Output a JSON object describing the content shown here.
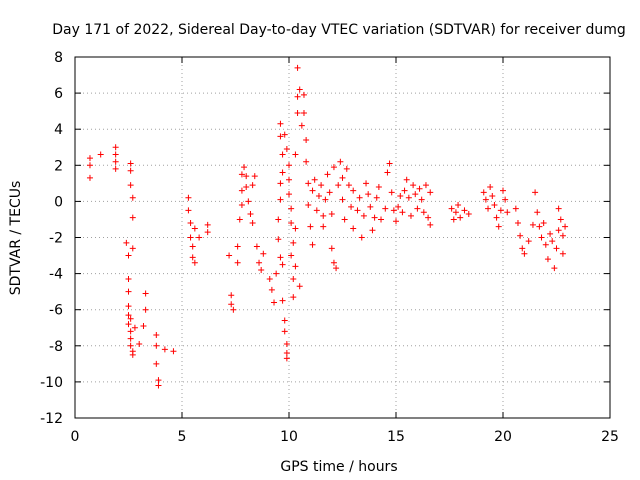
{
  "chart_data": {
    "type": "scatter",
    "title": "Day 171 of 2022, Sidereal Day-to-day VTEC variation (SDTVAR) for receiver dumg",
    "xlabel": "GPS time / hours",
    "ylabel": "SDTVAR / TECUs",
    "xlim": [
      0,
      25
    ],
    "ylim": [
      -12,
      8
    ],
    "xticks": [
      0,
      5,
      10,
      15,
      20,
      25
    ],
    "yticks": [
      -12,
      -10,
      -8,
      -6,
      -4,
      -2,
      0,
      2,
      4,
      6,
      8
    ],
    "grid": true,
    "marker": "+",
    "color": "#ff0000",
    "series": [
      {
        "name": "SDTVAR",
        "points": [
          [
            0.7,
            2.4
          ],
          [
            0.7,
            2.0
          ],
          [
            0.7,
            1.3
          ],
          [
            1.2,
            2.6
          ],
          [
            1.9,
            3.0
          ],
          [
            1.9,
            2.6
          ],
          [
            1.9,
            2.2
          ],
          [
            1.9,
            1.8
          ],
          [
            2.4,
            -2.3
          ],
          [
            2.5,
            -3.0
          ],
          [
            2.5,
            -4.3
          ],
          [
            2.5,
            -5.0
          ],
          [
            2.5,
            -5.8
          ],
          [
            2.5,
            -6.3
          ],
          [
            2.5,
            -6.8
          ],
          [
            2.6,
            -7.2
          ],
          [
            2.6,
            -7.6
          ],
          [
            2.6,
            -8.0
          ],
          [
            2.7,
            -8.3
          ],
          [
            2.7,
            -8.5
          ],
          [
            2.6,
            2.1
          ],
          [
            2.6,
            1.7
          ],
          [
            2.6,
            0.9
          ],
          [
            2.7,
            0.2
          ],
          [
            2.7,
            -0.9
          ],
          [
            2.7,
            -2.6
          ],
          [
            2.6,
            -6.5
          ],
          [
            2.8,
            -7.0
          ],
          [
            3.0,
            -7.9
          ],
          [
            3.2,
            -6.9
          ],
          [
            3.3,
            -6.0
          ],
          [
            3.3,
            -5.1
          ],
          [
            3.8,
            -7.4
          ],
          [
            3.8,
            -8.0
          ],
          [
            3.8,
            -9.0
          ],
          [
            3.9,
            -9.9
          ],
          [
            3.9,
            -10.2
          ],
          [
            4.2,
            -8.2
          ],
          [
            4.6,
            -8.3
          ],
          [
            5.3,
            0.2
          ],
          [
            5.3,
            -0.5
          ],
          [
            5.4,
            -1.2
          ],
          [
            5.4,
            -2.0
          ],
          [
            5.5,
            -2.5
          ],
          [
            5.5,
            -3.1
          ],
          [
            5.6,
            -3.4
          ],
          [
            5.6,
            -1.5
          ],
          [
            5.8,
            -2.0
          ],
          [
            6.2,
            -1.7
          ],
          [
            6.2,
            -1.3
          ],
          [
            7.2,
            -3.0
          ],
          [
            7.3,
            -5.2
          ],
          [
            7.3,
            -5.7
          ],
          [
            7.4,
            -6.0
          ],
          [
            7.6,
            -3.4
          ],
          [
            7.6,
            -2.5
          ],
          [
            7.7,
            -1.0
          ],
          [
            7.8,
            -0.2
          ],
          [
            7.8,
            0.6
          ],
          [
            7.8,
            1.5
          ],
          [
            7.9,
            1.9
          ],
          [
            8.0,
            1.4
          ],
          [
            8.0,
            0.8
          ],
          [
            8.1,
            0.0
          ],
          [
            8.2,
            -0.7
          ],
          [
            8.3,
            -1.2
          ],
          [
            8.3,
            0.9
          ],
          [
            8.4,
            1.4
          ],
          [
            8.5,
            -2.5
          ],
          [
            8.6,
            -3.4
          ],
          [
            8.7,
            -3.8
          ],
          [
            8.8,
            -2.9
          ],
          [
            9.1,
            -4.3
          ],
          [
            9.2,
            -4.9
          ],
          [
            9.3,
            -5.6
          ],
          [
            9.4,
            -4.0
          ],
          [
            9.5,
            -2.1
          ],
          [
            9.5,
            -1.0
          ],
          [
            9.6,
            0.1
          ],
          [
            9.6,
            1.0
          ],
          [
            9.7,
            -3.5
          ],
          [
            9.7,
            -5.5
          ],
          [
            9.8,
            -6.6
          ],
          [
            9.8,
            -7.2
          ],
          [
            9.9,
            -7.9
          ],
          [
            9.9,
            -8.4
          ],
          [
            9.9,
            -8.7
          ],
          [
            9.6,
            -3.1
          ],
          [
            9.7,
            1.6
          ],
          [
            9.7,
            2.6
          ],
          [
            9.6,
            3.6
          ],
          [
            9.6,
            4.3
          ],
          [
            9.8,
            3.7
          ],
          [
            9.9,
            2.9
          ],
          [
            10.0,
            2.0
          ],
          [
            10.0,
            1.2
          ],
          [
            10.0,
            0.4
          ],
          [
            10.1,
            -0.4
          ],
          [
            10.1,
            -1.2
          ],
          [
            10.2,
            -2.3
          ],
          [
            10.1,
            -3.0
          ],
          [
            10.2,
            -4.3
          ],
          [
            10.2,
            -5.3
          ],
          [
            10.3,
            -3.6
          ],
          [
            10.3,
            -1.5
          ],
          [
            10.3,
            2.6
          ],
          [
            10.4,
            4.9
          ],
          [
            10.4,
            5.8
          ],
          [
            10.4,
            7.4
          ],
          [
            10.5,
            6.2
          ],
          [
            10.6,
            4.2
          ],
          [
            10.7,
            4.9
          ],
          [
            10.7,
            5.9
          ],
          [
            10.5,
            -4.7
          ],
          [
            10.8,
            3.4
          ],
          [
            10.8,
            2.2
          ],
          [
            10.9,
            1.0
          ],
          [
            10.9,
            -0.2
          ],
          [
            11.0,
            -1.4
          ],
          [
            11.1,
            -2.4
          ],
          [
            11.1,
            0.6
          ],
          [
            11.2,
            1.2
          ],
          [
            11.3,
            -0.5
          ],
          [
            11.4,
            0.3
          ],
          [
            11.5,
            0.9
          ],
          [
            11.6,
            -0.8
          ],
          [
            11.6,
            -1.4
          ],
          [
            11.7,
            0.1
          ],
          [
            11.8,
            1.5
          ],
          [
            11.9,
            0.5
          ],
          [
            12.0,
            -0.7
          ],
          [
            12.0,
            -2.6
          ],
          [
            12.1,
            -3.4
          ],
          [
            12.2,
            -3.7
          ],
          [
            12.1,
            1.9
          ],
          [
            12.3,
            0.9
          ],
          [
            12.4,
            2.2
          ],
          [
            12.5,
            1.3
          ],
          [
            12.5,
            0.1
          ],
          [
            12.6,
            -1.0
          ],
          [
            12.7,
            1.8
          ],
          [
            12.8,
            0.9
          ],
          [
            12.9,
            -0.3
          ],
          [
            13.0,
            -1.5
          ],
          [
            13.0,
            0.6
          ],
          [
            13.2,
            -0.5
          ],
          [
            13.3,
            0.2
          ],
          [
            13.4,
            -2.0
          ],
          [
            13.5,
            -0.8
          ],
          [
            13.6,
            1.0
          ],
          [
            13.7,
            0.4
          ],
          [
            13.8,
            -0.3
          ],
          [
            13.9,
            -1.6
          ],
          [
            14.0,
            -0.9
          ],
          [
            14.1,
            0.2
          ],
          [
            14.2,
            0.8
          ],
          [
            14.3,
            -1.0
          ],
          [
            14.5,
            -0.4
          ],
          [
            14.6,
            1.6
          ],
          [
            14.7,
            2.1
          ],
          [
            14.8,
            0.5
          ],
          [
            14.9,
            -0.5
          ],
          [
            15.0,
            -1.1
          ],
          [
            15.1,
            -0.3
          ],
          [
            15.2,
            0.3
          ],
          [
            15.3,
            -0.6
          ],
          [
            15.4,
            0.6
          ],
          [
            15.5,
            1.2
          ],
          [
            15.6,
            0.2
          ],
          [
            15.7,
            -0.8
          ],
          [
            15.8,
            0.9
          ],
          [
            15.9,
            0.4
          ],
          [
            16.0,
            -0.4
          ],
          [
            16.1,
            0.7
          ],
          [
            16.2,
            0.1
          ],
          [
            16.3,
            -0.6
          ],
          [
            16.4,
            0.9
          ],
          [
            16.5,
            -0.9
          ],
          [
            16.6,
            -1.3
          ],
          [
            16.6,
            0.5
          ],
          [
            17.6,
            -0.4
          ],
          [
            17.7,
            -1.0
          ],
          [
            17.8,
            -0.6
          ],
          [
            17.9,
            -0.2
          ],
          [
            18.0,
            -0.9
          ],
          [
            18.2,
            -0.5
          ],
          [
            18.4,
            -0.7
          ],
          [
            19.1,
            0.5
          ],
          [
            19.2,
            0.1
          ],
          [
            19.3,
            -0.4
          ],
          [
            19.4,
            0.8
          ],
          [
            19.5,
            0.3
          ],
          [
            19.6,
            -0.2
          ],
          [
            19.7,
            -0.9
          ],
          [
            19.8,
            -1.4
          ],
          [
            19.9,
            -0.5
          ],
          [
            20.0,
            0.6
          ],
          [
            20.1,
            0.1
          ],
          [
            20.2,
            -0.6
          ],
          [
            20.6,
            -0.4
          ],
          [
            20.7,
            -1.2
          ],
          [
            20.8,
            -1.9
          ],
          [
            20.9,
            -2.6
          ],
          [
            21.0,
            -2.9
          ],
          [
            21.2,
            -2.2
          ],
          [
            21.4,
            -1.3
          ],
          [
            21.5,
            0.5
          ],
          [
            21.6,
            -0.6
          ],
          [
            21.7,
            -1.4
          ],
          [
            21.8,
            -2.0
          ],
          [
            21.9,
            -1.2
          ],
          [
            22.0,
            -2.4
          ],
          [
            22.1,
            -3.2
          ],
          [
            22.2,
            -1.8
          ],
          [
            22.3,
            -2.2
          ],
          [
            22.4,
            -3.7
          ],
          [
            22.5,
            -2.6
          ],
          [
            22.6,
            -1.6
          ],
          [
            22.6,
            -0.4
          ],
          [
            22.7,
            -1.0
          ],
          [
            22.8,
            -1.9
          ],
          [
            22.8,
            -2.9
          ],
          [
            22.9,
            -1.4
          ]
        ]
      }
    ]
  }
}
